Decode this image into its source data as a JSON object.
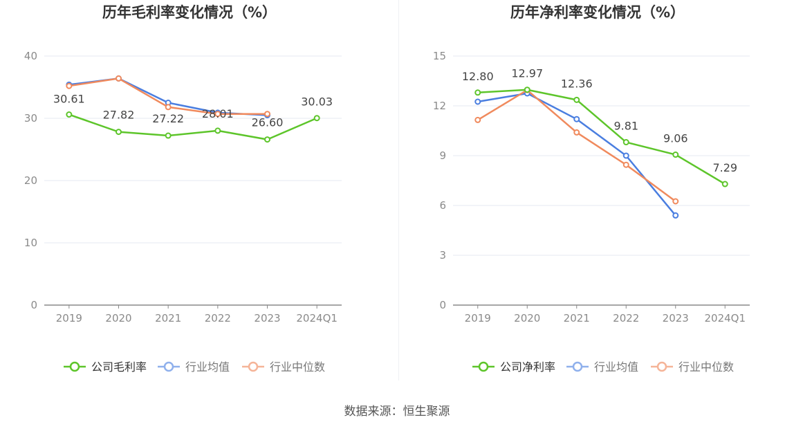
{
  "chart_data": [
    {
      "type": "line",
      "title": "历年毛利率变化情况（%）",
      "categories": [
        "2019",
        "2020",
        "2021",
        "2022",
        "2023",
        "2024Q1"
      ],
      "ylim": [
        0,
        40
      ],
      "yticks": [
        "0",
        "10",
        "20",
        "30",
        "40"
      ],
      "grid": true,
      "legend_position": "bottom-center",
      "series": [
        {
          "key": "company",
          "name": "公司毛利率",
          "color": "#5dc52a",
          "values": [
            30.61,
            27.82,
            27.22,
            28.01,
            26.6,
            30.03
          ],
          "labels": [
            "30.61",
            "27.82",
            "27.22",
            "28.01",
            "26.60",
            "30.03"
          ]
        },
        {
          "key": "avg",
          "name": "行业均值",
          "color": "#4a7ee0",
          "values": [
            35.4,
            36.4,
            32.5,
            30.9,
            30.5,
            null
          ]
        },
        {
          "key": "median",
          "name": "行业中位数",
          "color": "#f08a5d",
          "values": [
            35.2,
            36.4,
            31.8,
            30.7,
            30.7,
            null
          ]
        }
      ]
    },
    {
      "type": "line",
      "title": "历年净利率变化情况（%）",
      "categories": [
        "2019",
        "2020",
        "2021",
        "2022",
        "2023",
        "2024Q1"
      ],
      "ylim": [
        0,
        15
      ],
      "yticks": [
        "0",
        "3",
        "6",
        "9",
        "12",
        "15"
      ],
      "grid": true,
      "legend_position": "bottom-center",
      "series": [
        {
          "key": "company",
          "name": "公司净利率",
          "color": "#5dc52a",
          "values": [
            12.8,
            12.97,
            12.36,
            9.81,
            9.06,
            7.29
          ],
          "labels": [
            "12.80",
            "12.97",
            "12.36",
            "9.81",
            "9.06",
            "7.29"
          ]
        },
        {
          "key": "avg",
          "name": "行业均值",
          "color": "#4a7ee0",
          "values": [
            12.25,
            12.75,
            11.2,
            9.0,
            5.4,
            null
          ]
        },
        {
          "key": "median",
          "name": "行业中位数",
          "color": "#f08a5d",
          "values": [
            11.15,
            12.95,
            10.4,
            8.45,
            6.25,
            null
          ]
        }
      ]
    }
  ],
  "footer": {
    "source": "数据来源：恒生聚源"
  }
}
